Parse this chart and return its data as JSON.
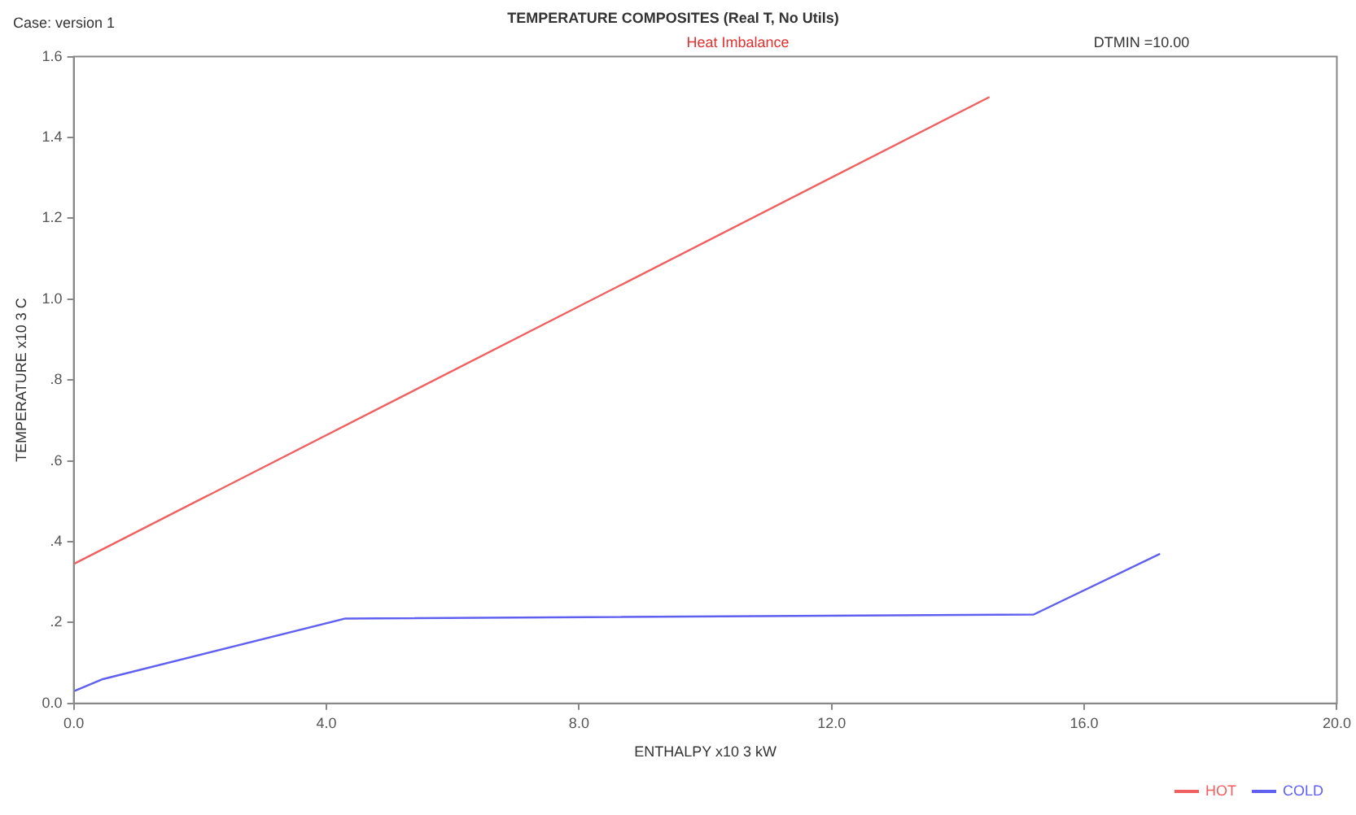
{
  "chart_data": {
    "type": "line",
    "title": "TEMPERATURE COMPOSITES (Real T, No Utils)",
    "xlabel": "ENTHALPY x10 3 kW",
    "ylabel": "TEMPERATURE x10 3 C",
    "annotations": [
      "Case: version 1",
      "Heat Imbalance",
      "DTMIN =10.00"
    ],
    "series": [
      {
        "name": "HOT",
        "color": "#f06060",
        "x": [
          0,
          14.5
        ],
        "values": [
          0.345,
          1.5
        ]
      },
      {
        "name": "COLD",
        "color": "#6060f0",
        "x": [
          0,
          0.46,
          4.3,
          15.2,
          17.2
        ],
        "values": [
          0.03,
          0.06,
          0.21,
          0.22,
          0.37
        ]
      }
    ],
    "xlim": [
      0,
      20
    ],
    "xticks": [
      {
        "value": 0,
        "label": "0.0"
      },
      {
        "value": 4,
        "label": "4.0"
      },
      {
        "value": 8,
        "label": "8.0"
      },
      {
        "value": 12,
        "label": "12.0"
      },
      {
        "value": 16,
        "label": "16.0"
      },
      {
        "value": 20,
        "label": "20.0"
      }
    ],
    "ylim": [
      0,
      1.6
    ],
    "yticks": [
      {
        "value": 0,
        "label": "0.0"
      },
      {
        "value": 0.2,
        "label": ".2"
      },
      {
        "value": 0.4,
        "label": ".4"
      },
      {
        "value": 0.6,
        "label": ".6"
      },
      {
        "value": 0.8,
        "label": ".8"
      },
      {
        "value": 1,
        "label": "1.0"
      },
      {
        "value": 1.2,
        "label": "1.2"
      },
      {
        "value": 1.4,
        "label": "1.4"
      },
      {
        "value": 1.6,
        "label": "1.6"
      }
    ],
    "grid": false,
    "legend": "bottom right",
    "marker": "none",
    "line_style": "solid"
  }
}
